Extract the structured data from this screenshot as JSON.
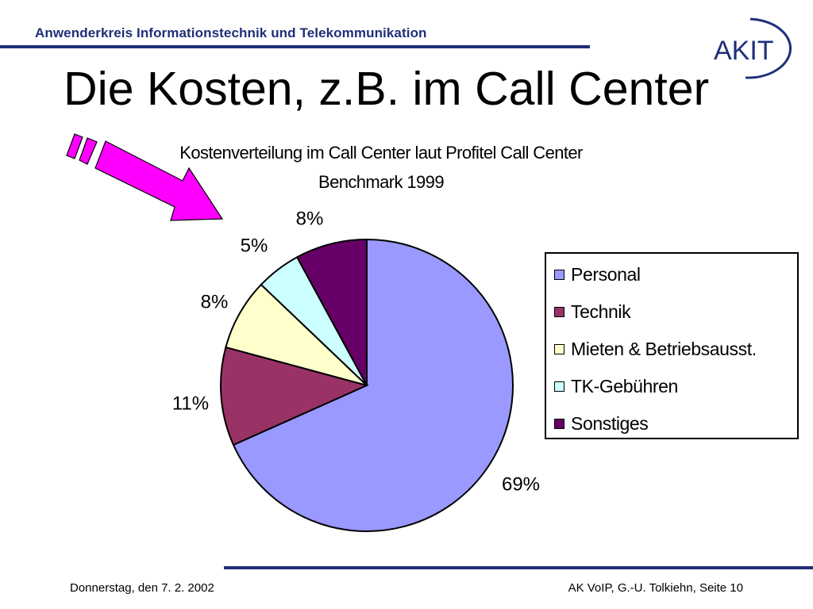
{
  "header": {
    "text": "Anwenderkreis  Informationstechnik und Telekommunikation",
    "logo_text": "AKIT"
  },
  "slide": {
    "title": "Die Kosten, z.B. im Call Center"
  },
  "colors": {
    "brand": "#1f2f78",
    "arrow": "#ff00ff"
  },
  "chart_data": {
    "type": "pie",
    "title_line1": "Kostenverteilung im Call Center laut Profitel Call Center",
    "title_line2": "Benchmark 1999",
    "categories": [
      "Personal",
      "Technik",
      "Mieten & Betriebsausst.",
      "TK-Gebühren",
      "Sonstiges"
    ],
    "values": [
      69,
      11,
      8,
      5,
      8
    ],
    "labels": [
      "69%",
      "11%",
      "8%",
      "5%",
      "8%"
    ],
    "colors": [
      "#9999ff",
      "#993366",
      "#ffffcc",
      "#ccffff",
      "#660066"
    ],
    "legend_position": "right"
  },
  "footer": {
    "date": "Donnerstag, den 7. 2. 2002",
    "page": "AK VoIP, G.-U. Tolkiehn, Seite 10"
  }
}
